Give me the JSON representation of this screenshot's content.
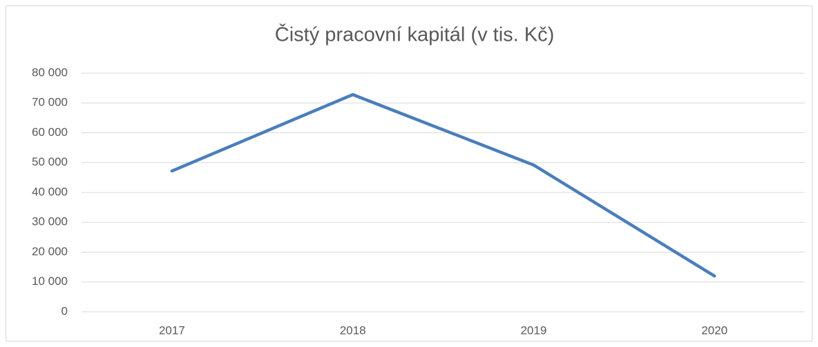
{
  "chart_data": {
    "type": "line",
    "title": "Čistý pracovní kapitál (v tis. Kč)",
    "categories": [
      "2017",
      "2018",
      "2019",
      "2020"
    ],
    "values": [
      47200,
      72800,
      49200,
      12000
    ],
    "color": "#4a7ebb",
    "ylim": [
      0,
      80000
    ],
    "yticks": [
      0,
      {
        "value": 10000,
        "label": "10 000"
      },
      {
        "value": 20000,
        "label": "20 000"
      },
      {
        "value": 30000,
        "label": "30 000"
      },
      {
        "value": 40000,
        "label": "40 000"
      },
      {
        "value": 50000,
        "label": "50 000"
      },
      {
        "value": 60000,
        "label": "60 000"
      },
      {
        "value": 70000,
        "label": "70 000"
      },
      {
        "value": 80000,
        "label": "80 000"
      }
    ],
    "grid": true
  }
}
